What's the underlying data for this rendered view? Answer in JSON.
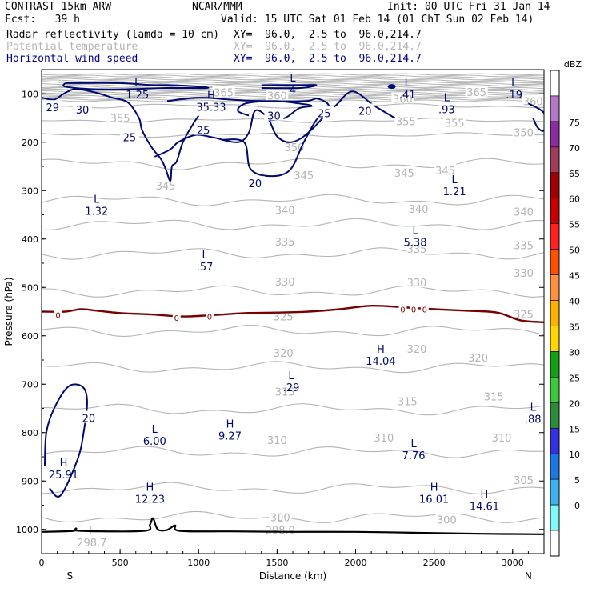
{
  "header": {
    "model": "CONTRAST 15km ARW",
    "org": "NCAR/MMM",
    "init": "Init: 00 UTC Fri 31 Jan 14",
    "fcst": "Fcst:   39 h",
    "valid": "Valid: 15 UTC Sat 01 Feb 14 (01 ChT Sun 02 Feb 14)",
    "fields": [
      {
        "name": "Radar reflectivity (lamda = 10 cm)",
        "xy": "XY=  96.0,  2.5 to  96.0,214.7",
        "color": "#000000"
      },
      {
        "name": "Potential temperature",
        "xy": "XY=  96.0,  2.5 to  96.0,214.7",
        "color": "#b4b4b4"
      },
      {
        "name": "Horizontal wind speed",
        "xy": "XY=  96.0,  2.5 to  96.0,214.7",
        "color": "#00008b"
      }
    ]
  },
  "colors": {
    "theta": "#b4b4b4",
    "wind": "#00096e",
    "zero": "#7a0000",
    "ground": "#000000"
  },
  "chart_data": {
    "type": "contour",
    "xlabel": "Distance (km)",
    "ylabel": "Pressure (hPa)",
    "xlim": [
      0,
      3200
    ],
    "ylim": [
      1050,
      50
    ],
    "xticks": [
      0,
      500,
      1000,
      1500,
      2000,
      2500,
      3000
    ],
    "yticks": [
      100,
      200,
      300,
      400,
      500,
      600,
      700,
      800,
      900,
      1000
    ],
    "x_end_labels": {
      "left": "S",
      "right": "N"
    },
    "theta_levels": [
      {
        "p": 975,
        "label": "300"
      },
      {
        "p": 915,
        "label": "305"
      },
      {
        "p": 840,
        "label": "310"
      },
      {
        "p": 752,
        "label": "315"
      },
      {
        "p": 665,
        "label": "320"
      },
      {
        "p": 590,
        "label": "325"
      },
      {
        "p": 508,
        "label": "330"
      },
      {
        "p": 430,
        "label": "335"
      },
      {
        "p": 370,
        "label": "340"
      },
      {
        "p": 320,
        "label": "345"
      },
      {
        "p": 245,
        "label": "350"
      },
      {
        "p": 185,
        "label": "355"
      },
      {
        "p": 155,
        "label": "360"
      },
      {
        "p": 125,
        "label": "365"
      }
    ],
    "theta_labels": [
      {
        "x": 1520,
        "p": 975,
        "t": "300"
      },
      {
        "x": 2580,
        "p": 980,
        "t": "300"
      },
      {
        "x": 3070,
        "p": 898,
        "t": "305"
      },
      {
        "x": 1500,
        "p": 815,
        "t": "310"
      },
      {
        "x": 2180,
        "p": 810,
        "t": "310"
      },
      {
        "x": 2930,
        "p": 810,
        "t": "310"
      },
      {
        "x": 1550,
        "p": 715,
        "t": "315"
      },
      {
        "x": 2330,
        "p": 735,
        "t": "315"
      },
      {
        "x": 2880,
        "p": 725,
        "t": "315"
      },
      {
        "x": 1540,
        "p": 635,
        "t": "320"
      },
      {
        "x": 2390,
        "p": 627,
        "t": "320"
      },
      {
        "x": 2780,
        "p": 645,
        "t": "320"
      },
      {
        "x": 1540,
        "p": 560,
        "t": "325"
      },
      {
        "x": 3070,
        "p": 555,
        "t": "325"
      },
      {
        "x": 1550,
        "p": 488,
        "t": "330"
      },
      {
        "x": 2390,
        "p": 490,
        "t": "330"
      },
      {
        "x": 3070,
        "p": 470,
        "t": "330"
      },
      {
        "x": 1550,
        "p": 405,
        "t": "335"
      },
      {
        "x": 2390,
        "p": 420,
        "t": "335"
      },
      {
        "x": 3070,
        "p": 413,
        "t": "335"
      },
      {
        "x": 1550,
        "p": 340,
        "t": "340"
      },
      {
        "x": 2400,
        "p": 338,
        "t": "340"
      },
      {
        "x": 3070,
        "p": 343,
        "t": "340"
      },
      {
        "x": 790,
        "p": 290,
        "t": "345"
      },
      {
        "x": 1670,
        "p": 268,
        "t": "345"
      },
      {
        "x": 2310,
        "p": 263,
        "t": "345"
      },
      {
        "x": 2570,
        "p": 258,
        "t": "345"
      },
      {
        "x": 1610,
        "p": 210,
        "t": "350"
      },
      {
        "x": 3070,
        "p": 180,
        "t": "350"
      },
      {
        "x": 500,
        "p": 150,
        "t": "355"
      },
      {
        "x": 2320,
        "p": 157,
        "t": "355"
      },
      {
        "x": 2630,
        "p": 160,
        "t": "355"
      },
      {
        "x": 1500,
        "p": 104,
        "t": "360"
      },
      {
        "x": 2300,
        "p": 110,
        "t": "360"
      },
      {
        "x": 3130,
        "p": 115,
        "t": "360"
      },
      {
        "x": 1160,
        "p": 97,
        "t": "365"
      },
      {
        "x": 2770,
        "p": 96,
        "t": "365"
      }
    ],
    "wind_contours": [
      {
        "label": "20",
        "points": [
          [
            1150,
            195
          ],
          [
            1290,
            200
          ],
          [
            1330,
            255
          ],
          [
            1450,
            270
          ],
          [
            1580,
            258
          ],
          [
            1670,
            200
          ],
          [
            1760,
            150
          ],
          [
            1870,
            125
          ],
          [
            1980,
            95
          ],
          [
            2120,
            125
          ],
          [
            2250,
            150
          ]
        ]
      },
      {
        "label": "25",
        "points": [
          [
            800,
            115
          ],
          [
            1000,
            108
          ],
          [
            1200,
            112
          ],
          [
            1400,
            115
          ],
          [
            1680,
            115
          ],
          [
            1760,
            110
          ],
          [
            1830,
            130
          ],
          [
            1700,
            180
          ],
          [
            1590,
            200
          ],
          [
            1500,
            188
          ],
          [
            1440,
            150
          ],
          [
            1360,
            135
          ],
          [
            1320,
            180
          ],
          [
            1250,
            200
          ],
          [
            1090,
            190
          ],
          [
            980,
            185
          ],
          [
            870,
            200
          ],
          [
            820,
            215
          ],
          [
            720,
            230
          ]
        ]
      },
      {
        "label": "30",
        "points": [
          [
            1450,
            155
          ],
          [
            1550,
            150
          ],
          [
            1640,
            130
          ],
          [
            1720,
            125
          ],
          [
            1640,
            120
          ],
          [
            1480,
            115
          ],
          [
            1300,
            120
          ],
          [
            1250,
            135
          ],
          [
            1320,
            145
          ]
        ]
      },
      {
        "label": "4",
        "points": [
          [
            1400,
            82
          ],
          [
            1650,
            82
          ],
          [
            1750,
            82
          ],
          [
            1650,
            88
          ],
          [
            1400,
            88
          ]
        ]
      },
      {
        "label": "",
        "points": [
          [
            150,
            78
          ],
          [
            500,
            78
          ],
          [
            700,
            82
          ],
          [
            800,
            82
          ],
          [
            1000,
            85
          ],
          [
            1050,
            88
          ],
          [
            800,
            88
          ],
          [
            600,
            90
          ],
          [
            500,
            91
          ],
          [
            300,
            90
          ],
          [
            150,
            85
          ],
          [
            150,
            78
          ]
        ]
      },
      {
        "label": "",
        "points": [
          [
            0,
            108
          ],
          [
            80,
            112
          ],
          [
            140,
            100
          ],
          [
            220,
            90
          ],
          [
            350,
            98
          ],
          [
            450,
            108
          ],
          [
            550,
            118
          ],
          [
            620,
            150
          ],
          [
            640,
            175
          ],
          [
            700,
            210
          ],
          [
            760,
            235
          ],
          [
            790,
            255
          ],
          [
            820,
            280
          ],
          [
            830,
            250
          ],
          [
            860,
            240
          ],
          [
            900,
            200
          ],
          [
            960,
            165
          ],
          [
            1000,
            145
          ]
        ]
      },
      {
        "label": "",
        "points": [
          [
            50,
            915
          ],
          [
            120,
            930
          ],
          [
            230,
            855
          ],
          [
            270,
            795
          ],
          [
            290,
            735
          ],
          [
            260,
            705
          ],
          [
            170,
            705
          ],
          [
            80,
            750
          ],
          [
            30,
            800
          ],
          [
            20,
            870
          ]
        ]
      },
      {
        "label": "",
        "points": [
          [
            3100,
            120
          ],
          [
            3200,
            140
          ],
          [
            3200,
            175
          ],
          [
            3160,
            170
          ],
          [
            3130,
            150
          ]
        ]
      }
    ],
    "zero_line": [
      [
        0,
        550
      ],
      [
        150,
        550
      ],
      [
        250,
        545
      ],
      [
        350,
        548
      ],
      [
        500,
        553
      ],
      [
        700,
        556
      ],
      [
        900,
        560
      ],
      [
        1100,
        557
      ],
      [
        1300,
        553
      ],
      [
        1500,
        552
      ],
      [
        1700,
        550
      ],
      [
        1900,
        545
      ],
      [
        2100,
        538
      ],
      [
        2300,
        541
      ],
      [
        2500,
        545
      ],
      [
        2700,
        548
      ],
      [
        2900,
        552
      ],
      [
        3050,
        568
      ],
      [
        3200,
        572
      ]
    ],
    "zero_labels": [
      {
        "x": 105,
        "p": 557,
        "t": "0"
      },
      {
        "x": 860,
        "p": 562,
        "t": "0"
      },
      {
        "x": 1070,
        "p": 560,
        "t": "0"
      },
      {
        "x": 2300,
        "p": 545,
        "t": "0"
      },
      {
        "x": 2370,
        "p": 545,
        "t": "0"
      },
      {
        "x": 2440,
        "p": 545,
        "t": "0"
      }
    ],
    "ground": [
      [
        0,
        1005
      ],
      [
        200,
        1003
      ],
      [
        220,
        998
      ],
      [
        250,
        1003
      ],
      [
        650,
        1003
      ],
      [
        690,
        990
      ],
      [
        710,
        977
      ],
      [
        740,
        1000
      ],
      [
        800,
        1001
      ],
      [
        850,
        992
      ],
      [
        880,
        1003
      ],
      [
        1200,
        1004
      ],
      [
        1600,
        1005
      ],
      [
        2000,
        1005
      ],
      [
        2400,
        1007
      ],
      [
        2800,
        1009
      ],
      [
        3200,
        1010
      ]
    ],
    "wind_labels": [
      {
        "x": 260,
        "p": 133,
        "t": "30"
      },
      {
        "x": 70,
        "p": 128,
        "t": "29"
      },
      {
        "x": 1480,
        "p": 145,
        "t": "30"
      },
      {
        "x": 560,
        "p": 190,
        "t": "25"
      },
      {
        "x": 1030,
        "p": 175,
        "t": "25"
      },
      {
        "x": 1800,
        "p": 140,
        "t": "25"
      },
      {
        "x": 2060,
        "p": 135,
        "t": "20"
      },
      {
        "x": 1360,
        "p": 285,
        "t": "20"
      },
      {
        "x": 300,
        "p": 770,
        "t": "20"
      }
    ],
    "extrema": [
      {
        "x": 610,
        "p": 85,
        "sym": "L",
        "val": "1.25"
      },
      {
        "x": 1080,
        "p": 110,
        "sym": "H",
        "val": "35.33"
      },
      {
        "x": 1600,
        "p": 75,
        "sym": "L",
        "val": "4"
      },
      {
        "x": 2330,
        "p": 85,
        "sym": "L",
        "val": ".41"
      },
      {
        "x": 2580,
        "p": 115,
        "sym": "L",
        "val": ".93"
      },
      {
        "x": 3010,
        "p": 85,
        "sym": "L",
        "val": ".19"
      },
      {
        "x": 2630,
        "p": 285,
        "sym": "L",
        "val": "1.21"
      },
      {
        "x": 350,
        "p": 325,
        "sym": "L",
        "val": "1.32"
      },
      {
        "x": 2380,
        "p": 390,
        "sym": "L",
        "val": "5.38"
      },
      {
        "x": 1040,
        "p": 440,
        "sym": "L",
        "val": ".57"
      },
      {
        "x": 2160,
        "p": 635,
        "sym": "H",
        "val": "14.04"
      },
      {
        "x": 1590,
        "p": 690,
        "sym": "L",
        "val": ".29"
      },
      {
        "x": 3130,
        "p": 755,
        "sym": "L",
        "val": ".88"
      },
      {
        "x": 720,
        "p": 800,
        "sym": "L",
        "val": "6.00"
      },
      {
        "x": 1200,
        "p": 790,
        "sym": "H",
        "val": "9.27"
      },
      {
        "x": 2370,
        "p": 830,
        "sym": "L",
        "val": "7.76"
      },
      {
        "x": 140,
        "p": 870,
        "sym": "H",
        "val": "25.91"
      },
      {
        "x": 690,
        "p": 920,
        "sym": "H",
        "val": "12.23"
      },
      {
        "x": 2500,
        "p": 920,
        "sym": "H",
        "val": "16.01"
      },
      {
        "x": 2820,
        "p": 935,
        "sym": "H",
        "val": "14.61"
      },
      {
        "x": 1520,
        "p": 985,
        "sym": "L",
        "val": "298.9"
      },
      {
        "x": 320,
        "p": 1010,
        "sym": "L",
        "val": "298.7"
      }
    ],
    "colorbar": {
      "unit": "dBZ",
      "levels": [
        "0",
        "5",
        "10",
        "15",
        "20",
        "25",
        "30",
        "35",
        "40",
        "45",
        "50",
        "55",
        "60",
        "65",
        "70",
        "75"
      ],
      "colors": [
        "#ffffff",
        "#7ffaf9",
        "#3fb2f0",
        "#1e78e4",
        "#3232e0",
        "#2d8c3c",
        "#3cc83c",
        "#14a014",
        "#ffd700",
        "#ffb000",
        "#ff9040",
        "#ff5000",
        "#ff2020",
        "#c80000",
        "#a00000",
        "#a03c5a",
        "#8c2ca0",
        "#b478c8",
        "#ffffff"
      ]
    }
  }
}
